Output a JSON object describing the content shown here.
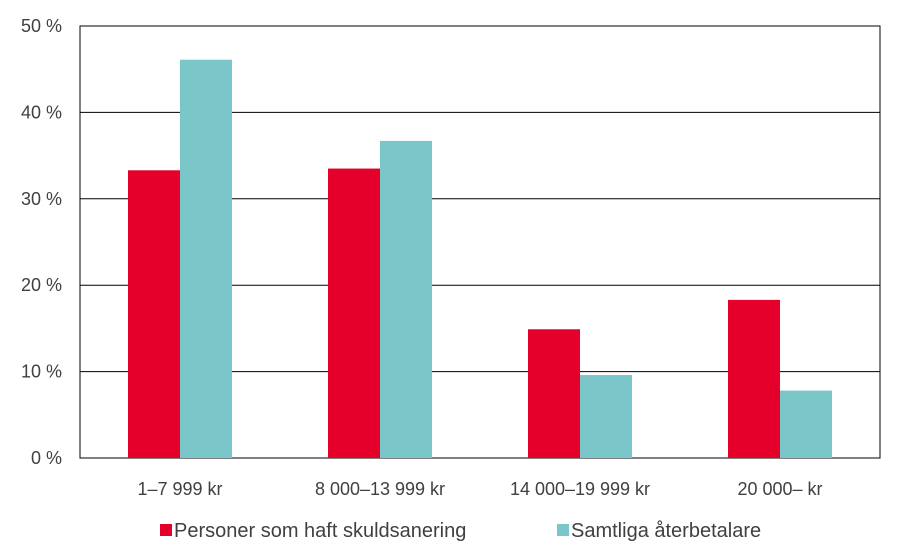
{
  "chart_data": {
    "type": "bar",
    "title": "",
    "xlabel": "",
    "ylabel": "",
    "categories": [
      "1–7 999 kr",
      "8 000–13 999 kr",
      "14 000–19 999 kr",
      "20 000– kr"
    ],
    "series": [
      {
        "name": "Personer som haft skuldsanering",
        "color": "#e4002b",
        "values": [
          33.3,
          33.5,
          14.9,
          18.3
        ]
      },
      {
        "name": "Samtliga återbetalare",
        "color": "#7ac6c8",
        "values": [
          46.1,
          36.7,
          9.6,
          7.8
        ]
      }
    ],
    "ylim": [
      0,
      50
    ],
    "yticks": [
      0,
      10,
      20,
      30,
      40,
      50
    ],
    "ytick_labels": [
      "0 %",
      "10 %",
      "20 %",
      "30 %",
      "40 %",
      "50 %"
    ],
    "grid": true,
    "legend_position": "bottom"
  }
}
